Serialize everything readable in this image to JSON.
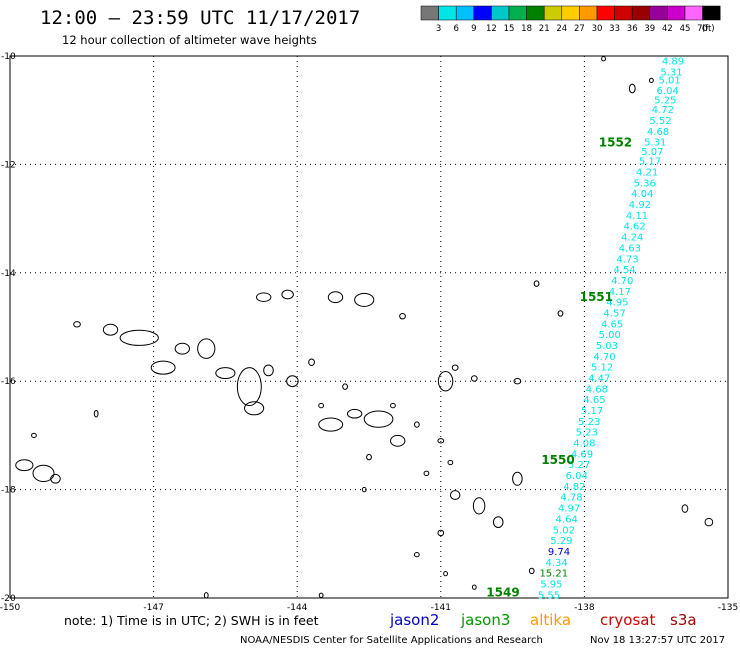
{
  "header": {
    "title": "12:00 — 23:59 UTC 11/17/2017",
    "subtitle": "12 hour collection of altimeter wave heights"
  },
  "colorbar": {
    "unit": "(ft)",
    "labels": [
      "3",
      "6",
      "9",
      "12",
      "15",
      "18",
      "21",
      "24",
      "27",
      "30",
      "33",
      "36",
      "39",
      "42",
      "45",
      "70"
    ],
    "colors": [
      "#777777",
      "#00e5e5",
      "#00bfff",
      "#0000ff",
      "#00c8c8",
      "#00b050",
      "#008000",
      "#cccc00",
      "#ffcc00",
      "#ff9900",
      "#ff0000",
      "#cc0000",
      "#990000",
      "#990099",
      "#cc00cc",
      "#ff66ff",
      "#000000"
    ]
  },
  "map": {
    "lon_range": [
      -150,
      -135
    ],
    "lat_range": [
      -20,
      -10
    ],
    "lon_ticks": [
      "-150",
      "-147",
      "-144",
      "-141",
      "-138",
      "-135"
    ],
    "lat_ticks": [
      "-10",
      "-12",
      "-14",
      "-16",
      "-18",
      "-20"
    ],
    "track": {
      "color": "#00e5e5",
      "passes": [
        {
          "label": "1552",
          "lon": -137.7,
          "lat": -11.6,
          "color": "#008000"
        },
        {
          "label": "1551",
          "lon": -138.1,
          "lat": -14.45,
          "color": "#008000"
        },
        {
          "label": "1550",
          "lon": -138.9,
          "lat": -17.45,
          "color": "#008000"
        },
        {
          "label": "1549",
          "lon": -140.05,
          "lat": -19.9,
          "color": "#008000"
        }
      ],
      "readings": [
        {
          "value": "4.89",
          "lon": -136.15,
          "lat": -10.1
        },
        {
          "value": "5.31",
          "lon": -136.18,
          "lat": -10.3
        },
        {
          "value": "5.01",
          "lon": -136.22,
          "lat": -10.45
        },
        {
          "value": "6.04",
          "lon": -136.26,
          "lat": -10.65
        },
        {
          "value": "5.25",
          "lon": -136.31,
          "lat": -10.82
        },
        {
          "value": "4.72",
          "lon": -136.36,
          "lat": -11.0
        },
        {
          "value": "5.52",
          "lon": -136.41,
          "lat": -11.2
        },
        {
          "value": "4.68",
          "lon": -136.46,
          "lat": -11.4
        },
        {
          "value": "5.31",
          "lon": -136.52,
          "lat": -11.6
        },
        {
          "value": "5.07",
          "lon": -136.58,
          "lat": -11.77
        },
        {
          "value": "5.17",
          "lon": -136.63,
          "lat": -11.95
        },
        {
          "value": "4.21",
          "lon": -136.69,
          "lat": -12.15
        },
        {
          "value": "5.36",
          "lon": -136.74,
          "lat": -12.35
        },
        {
          "value": "4.04",
          "lon": -136.79,
          "lat": -12.55
        },
        {
          "value": "4.92",
          "lon": -136.84,
          "lat": -12.75
        },
        {
          "value": "4.11",
          "lon": -136.9,
          "lat": -12.95
        },
        {
          "value": "4.62",
          "lon": -136.95,
          "lat": -13.15
        },
        {
          "value": "4.24",
          "lon": -137.0,
          "lat": -13.35
        },
        {
          "value": "4.63",
          "lon": -137.05,
          "lat": -13.55
        },
        {
          "value": "4.73",
          "lon": -137.1,
          "lat": -13.75
        },
        {
          "value": "4.54",
          "lon": -137.16,
          "lat": -13.95
        },
        {
          "value": "4.70",
          "lon": -137.21,
          "lat": -14.15
        },
        {
          "value": "4.17",
          "lon": -137.26,
          "lat": -14.35
        },
        {
          "value": "4.95",
          "lon": -137.31,
          "lat": -14.55
        },
        {
          "value": "4.57",
          "lon": -137.37,
          "lat": -14.75
        },
        {
          "value": "4.65",
          "lon": -137.42,
          "lat": -14.95
        },
        {
          "value": "5.00",
          "lon": -137.47,
          "lat": -15.15
        },
        {
          "value": "5.03",
          "lon": -137.53,
          "lat": -15.35
        },
        {
          "value": "4.70",
          "lon": -137.58,
          "lat": -15.55
        },
        {
          "value": "5.12",
          "lon": -137.63,
          "lat": -15.75
        },
        {
          "value": "4.47",
          "lon": -137.69,
          "lat": -15.95
        },
        {
          "value": "4.68",
          "lon": -137.74,
          "lat": -16.15
        },
        {
          "value": "4.65",
          "lon": -137.79,
          "lat": -16.35
        },
        {
          "value": "5.17",
          "lon": -137.84,
          "lat": -16.55
        },
        {
          "value": "5.23",
          "lon": -137.9,
          "lat": -16.75
        },
        {
          "value": "5.23",
          "lon": -137.95,
          "lat": -16.95
        },
        {
          "value": "4.08",
          "lon": -138.0,
          "lat": -17.15
        },
        {
          "value": "4.69",
          "lon": -138.05,
          "lat": -17.35
        },
        {
          "value": "5.27",
          "lon": -138.11,
          "lat": -17.55
        },
        {
          "value": "6.04",
          "lon": -138.16,
          "lat": -17.75
        },
        {
          "value": "4.82",
          "lon": -138.21,
          "lat": -17.95
        },
        {
          "value": "4.78",
          "lon": -138.27,
          "lat": -18.15
        },
        {
          "value": "4.97",
          "lon": -138.32,
          "lat": -18.35
        },
        {
          "value": "4.64",
          "lon": -138.37,
          "lat": -18.55
        },
        {
          "value": "5.02",
          "lon": -138.43,
          "lat": -18.75
        },
        {
          "value": "5.29",
          "lon": -138.48,
          "lat": -18.95
        },
        {
          "value": "9.74",
          "lon": -138.53,
          "lat": -19.15,
          "color": "#0000cc"
        },
        {
          "value": "4.34",
          "lon": -138.58,
          "lat": -19.35
        },
        {
          "value": "15.21",
          "lon": -138.64,
          "lat": -19.55,
          "color": "#008000"
        },
        {
          "value": "5.95",
          "lon": -138.69,
          "lat": -19.75
        },
        {
          "value": "5.55",
          "lon": -138.74,
          "lat": -19.95
        }
      ]
    },
    "islands": [
      {
        "lon": -149.7,
        "lat": -17.55,
        "rx": 0.18,
        "ry": 0.1
      },
      {
        "lon": -149.3,
        "lat": -17.7,
        "rx": 0.22,
        "ry": 0.15
      },
      {
        "lon": -149.05,
        "lat": -17.8,
        "rx": 0.1,
        "ry": 0.08
      },
      {
        "lon": -148.6,
        "lat": -14.95,
        "rx": 0.07,
        "ry": 0.05
      },
      {
        "lon": -149.5,
        "lat": -17.0,
        "rx": 0.05,
        "ry": 0.04
      },
      {
        "lon": -148.2,
        "lat": -16.6,
        "rx": 0.04,
        "ry": 0.06
      },
      {
        "lon": -147.9,
        "lat": -15.05,
        "rx": 0.15,
        "ry": 0.1
      },
      {
        "lon": -147.3,
        "lat": -15.2,
        "rx": 0.4,
        "ry": 0.14
      },
      {
        "lon": -146.8,
        "lat": -15.75,
        "rx": 0.25,
        "ry": 0.12
      },
      {
        "lon": -146.4,
        "lat": -15.4,
        "rx": 0.15,
        "ry": 0.1
      },
      {
        "lon": -145.9,
        "lat": -15.4,
        "rx": 0.18,
        "ry": 0.18
      },
      {
        "lon": -145.5,
        "lat": -15.85,
        "rx": 0.2,
        "ry": 0.1
      },
      {
        "lon": -145.0,
        "lat": -16.1,
        "rx": 0.25,
        "ry": 0.35
      },
      {
        "lon": -144.9,
        "lat": -16.5,
        "rx": 0.2,
        "ry": 0.12
      },
      {
        "lon": -144.6,
        "lat": -15.8,
        "rx": 0.1,
        "ry": 0.1
      },
      {
        "lon": -144.1,
        "lat": -16.0,
        "rx": 0.12,
        "ry": 0.1
      },
      {
        "lon": -144.7,
        "lat": -14.45,
        "rx": 0.15,
        "ry": 0.08
      },
      {
        "lon": -144.2,
        "lat": -14.4,
        "rx": 0.12,
        "ry": 0.08
      },
      {
        "lon": -143.2,
        "lat": -14.45,
        "rx": 0.15,
        "ry": 0.1
      },
      {
        "lon": -142.6,
        "lat": -14.5,
        "rx": 0.2,
        "ry": 0.12
      },
      {
        "lon": -141.8,
        "lat": -14.8,
        "rx": 0.06,
        "ry": 0.05
      },
      {
        "lon": -143.7,
        "lat": -15.65,
        "rx": 0.06,
        "ry": 0.06
      },
      {
        "lon": -143.3,
        "lat": -16.8,
        "rx": 0.25,
        "ry": 0.12
      },
      {
        "lon": -142.8,
        "lat": -16.6,
        "rx": 0.15,
        "ry": 0.08
      },
      {
        "lon": -142.3,
        "lat": -16.7,
        "rx": 0.3,
        "ry": 0.15
      },
      {
        "lon": -141.9,
        "lat": -17.1,
        "rx": 0.15,
        "ry": 0.1
      },
      {
        "lon": -143.0,
        "lat": -16.1,
        "rx": 0.05,
        "ry": 0.05
      },
      {
        "lon": -143.5,
        "lat": -16.45,
        "rx": 0.05,
        "ry": 0.04
      },
      {
        "lon": -142.5,
        "lat": -17.4,
        "rx": 0.05,
        "ry": 0.05
      },
      {
        "lon": -142.0,
        "lat": -16.45,
        "rx": 0.05,
        "ry": 0.04
      },
      {
        "lon": -141.5,
        "lat": -16.8,
        "rx": 0.05,
        "ry": 0.05
      },
      {
        "lon": -140.9,
        "lat": -16.0,
        "rx": 0.15,
        "ry": 0.18
      },
      {
        "lon": -140.7,
        "lat": -15.75,
        "rx": 0.06,
        "ry": 0.05
      },
      {
        "lon": -141.0,
        "lat": -17.1,
        "rx": 0.06,
        "ry": 0.04
      },
      {
        "lon": -140.3,
        "lat": -15.95,
        "rx": 0.06,
        "ry": 0.05
      },
      {
        "lon": -139.4,
        "lat": -16.0,
        "rx": 0.07,
        "ry": 0.05
      },
      {
        "lon": -140.8,
        "lat": -17.5,
        "rx": 0.05,
        "ry": 0.04
      },
      {
        "lon": -141.3,
        "lat": -17.7,
        "rx": 0.05,
        "ry": 0.04
      },
      {
        "lon": -140.7,
        "lat": -18.1,
        "rx": 0.1,
        "ry": 0.08
      },
      {
        "lon": -140.2,
        "lat": -18.3,
        "rx": 0.12,
        "ry": 0.15
      },
      {
        "lon": -139.8,
        "lat": -18.6,
        "rx": 0.1,
        "ry": 0.1
      },
      {
        "lon": -139.4,
        "lat": -17.8,
        "rx": 0.1,
        "ry": 0.12
      },
      {
        "lon": -141.0,
        "lat": -18.8,
        "rx": 0.06,
        "ry": 0.05
      },
      {
        "lon": -139.0,
        "lat": -14.2,
        "rx": 0.05,
        "ry": 0.05
      },
      {
        "lon": -138.5,
        "lat": -14.75,
        "rx": 0.05,
        "ry": 0.05
      },
      {
        "lon": -137.0,
        "lat": -10.6,
        "rx": 0.06,
        "ry": 0.08
      },
      {
        "lon": -136.6,
        "lat": -10.45,
        "rx": 0.04,
        "ry": 0.04
      },
      {
        "lon": -137.6,
        "lat": -10.05,
        "rx": 0.04,
        "ry": 0.04
      },
      {
        "lon": -135.9,
        "lat": -18.35,
        "rx": 0.06,
        "ry": 0.07
      },
      {
        "lon": -135.4,
        "lat": -18.6,
        "rx": 0.08,
        "ry": 0.07
      },
      {
        "lon": -140.9,
        "lat": -19.55,
        "rx": 0.04,
        "ry": 0.04
      },
      {
        "lon": -140.3,
        "lat": -19.8,
        "rx": 0.04,
        "ry": 0.04
      },
      {
        "lon": -139.1,
        "lat": -19.5,
        "rx": 0.05,
        "ry": 0.05
      },
      {
        "lon": -145.9,
        "lat": -19.95,
        "rx": 0.04,
        "ry": 0.05
      },
      {
        "lon": -143.5,
        "lat": -19.95,
        "rx": 0.04,
        "ry": 0.04
      },
      {
        "lon": -142.6,
        "lat": -18.0,
        "rx": 0.04,
        "ry": 0.04
      },
      {
        "lon": -141.5,
        "lat": -19.2,
        "rx": 0.05,
        "ry": 0.04
      }
    ]
  },
  "footer": {
    "note": "note: 1) Time is in UTC; 2) SWH is in feet",
    "satellites": [
      {
        "name": "jason2",
        "color": "#0000cc"
      },
      {
        "name": "jason3",
        "color": "#009900"
      },
      {
        "name": "altika",
        "color": "#ff9900"
      },
      {
        "name": "cryosat",
        "color": "#cc0000"
      },
      {
        "name": "s3a",
        "color": "#990000"
      }
    ],
    "credit": "NOAA/NESDIS Center for Satellite Applications and Research",
    "timestamp": "Nov 18 13:27:57 UTC 2017"
  }
}
